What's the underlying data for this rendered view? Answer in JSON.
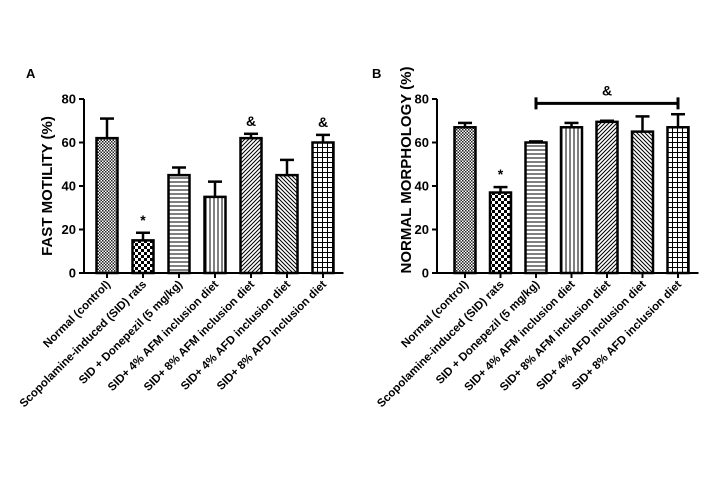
{
  "chart_data": [
    {
      "type": "bar",
      "panel": "A",
      "title": "",
      "xlabel": "",
      "ylabel": "FAST MOTILITY (%)",
      "ylim": [
        0,
        80
      ],
      "yticks": [
        0,
        20,
        40,
        60,
        80
      ],
      "categories": [
        "Normal (control)",
        "Scopolamine-induced (SID) rats",
        "SID + Donepezil (5 mg/kg)",
        "SID+ 4% AFM inclusion diet",
        "SID+ 8% AFM inclusion diet",
        "SID+ 4% AFD inclusion diet",
        "SID+ 8% AFD inclusion diet"
      ],
      "values": [
        62,
        15,
        45,
        35,
        62,
        45,
        60
      ],
      "error_upper": [
        9,
        3.5,
        3.5,
        7,
        2,
        7,
        3.5
      ],
      "patterns": [
        "fine-dots",
        "checker",
        "horizontal",
        "vertical",
        "diag-up",
        "diag-down",
        "grid"
      ],
      "annotations": [
        "",
        "*",
        "",
        "",
        "&",
        "",
        "&"
      ],
      "grid": false,
      "legend": "none"
    },
    {
      "type": "bar",
      "panel": "B",
      "title": "",
      "xlabel": "",
      "ylabel": "NORMAL MORPHOLOGY (%)",
      "ylim": [
        0,
        80
      ],
      "yticks": [
        0,
        20,
        40,
        60,
        80
      ],
      "categories": [
        "Normal (control)",
        "Scopolamine-induced (SID) rats",
        "SID + Donepezil (5 mg/kg)",
        "SID+ 4% AFM inclusion diet",
        "SID+ 8% AFM inclusion diet",
        "SID+ 4% AFD inclusion diet",
        "SID+ 8% AFD inclusion diet"
      ],
      "values": [
        67,
        37,
        60,
        67,
        69.5,
        65,
        67
      ],
      "error_upper": [
        2,
        2.5,
        0.5,
        2,
        0.5,
        7,
        6
      ],
      "patterns": [
        "fine-dots",
        "checker",
        "horizontal",
        "vertical",
        "diag-up",
        "diag-down",
        "grid"
      ],
      "annotations": [
        "",
        "*",
        "",
        "",
        "",
        "",
        ""
      ],
      "bracket": {
        "from_index": 2,
        "to_index": 6,
        "label": "&"
      },
      "grid": false,
      "legend": "none"
    }
  ]
}
